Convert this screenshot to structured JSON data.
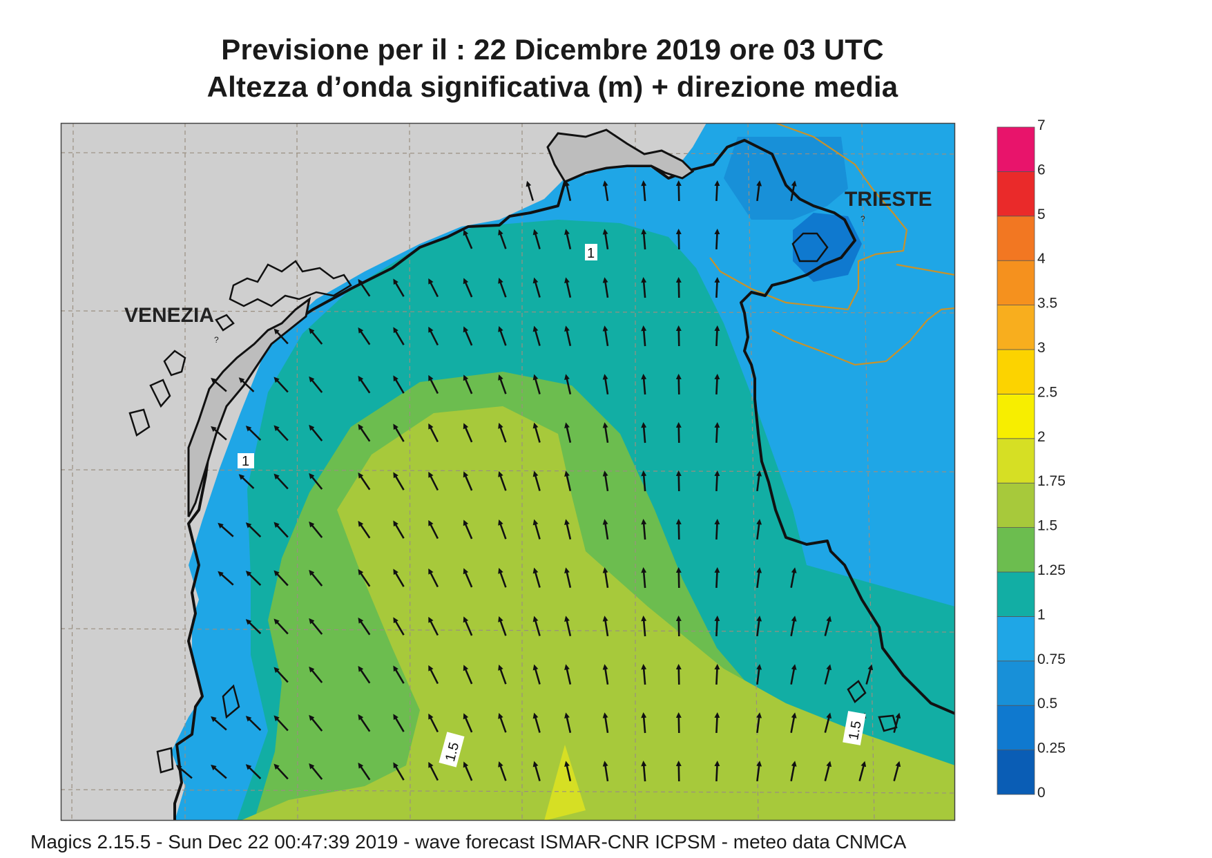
{
  "header": {
    "title_line1": "Previsione per il  :  22 Dicembre  2019   ore 03 UTC",
    "title_line2": "Altezza d’onda significativa (m) + direzione media"
  },
  "map": {
    "cities": [
      {
        "name": "VENEZIA"
      },
      {
        "name": "TRIESTE"
      }
    ],
    "contour_labels": [
      "1",
      "1",
      "1.5",
      "1.5"
    ],
    "colors": {
      "land": "#cfcfcf",
      "coast": "#111111",
      "border": "#c8922a",
      "grid": "#9a8f80",
      "arrow": "#111111"
    }
  },
  "legend": {
    "levels": [
      "0",
      "0.25",
      "0.5",
      "0.75",
      "1",
      "1.25",
      "1.5",
      "1.75",
      "2",
      "2.5",
      "3",
      "3.5",
      "4",
      "5",
      "6",
      "7"
    ],
    "colors": [
      "#0a5db5",
      "#0f79cf",
      "#1890d8",
      "#1fa6e6",
      "#12aea4",
      "#6cbd4f",
      "#a7c93b",
      "#d6df24",
      "#f7ee00",
      "#fcd300",
      "#f8ae1e",
      "#f5911e",
      "#f27722",
      "#ea2a2a",
      "#e8146b"
    ]
  },
  "footer": {
    "text": "Magics 2.15.5 - Sun Dec 22 00:47:39 2019 - wave forecast  ISMAR-CNR  ICPSM - meteo data   CNMCA"
  }
}
